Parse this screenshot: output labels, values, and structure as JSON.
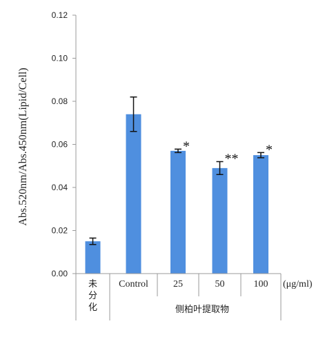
{
  "chart_data": {
    "type": "bar",
    "ylabel": "Abs.520nm/Abs.450nm(Lipid/Cell)",
    "xlabel": "",
    "unit_label": "(μg/ml)",
    "group_label": "侧柏叶提取物",
    "ylim": [
      0,
      0.12
    ],
    "yticks": [
      "0.00",
      "0.02",
      "0.04",
      "0.06",
      "0.08",
      "0.10",
      "0.12"
    ],
    "ytick_values": [
      0,
      0.02,
      0.04,
      0.06,
      0.08,
      0.1,
      0.12
    ],
    "categories": [
      "未\n分\n化",
      "Control",
      "25",
      "50",
      "100"
    ],
    "values": [
      0.015,
      0.074,
      0.057,
      0.049,
      0.055
    ],
    "errors": [
      0.0015,
      0.008,
      0.0008,
      0.003,
      0.0012
    ],
    "significance": [
      "",
      "",
      "*",
      "**",
      "*"
    ],
    "grid": false,
    "bar_color": "#4f8fdf",
    "error_color": "#111111"
  }
}
